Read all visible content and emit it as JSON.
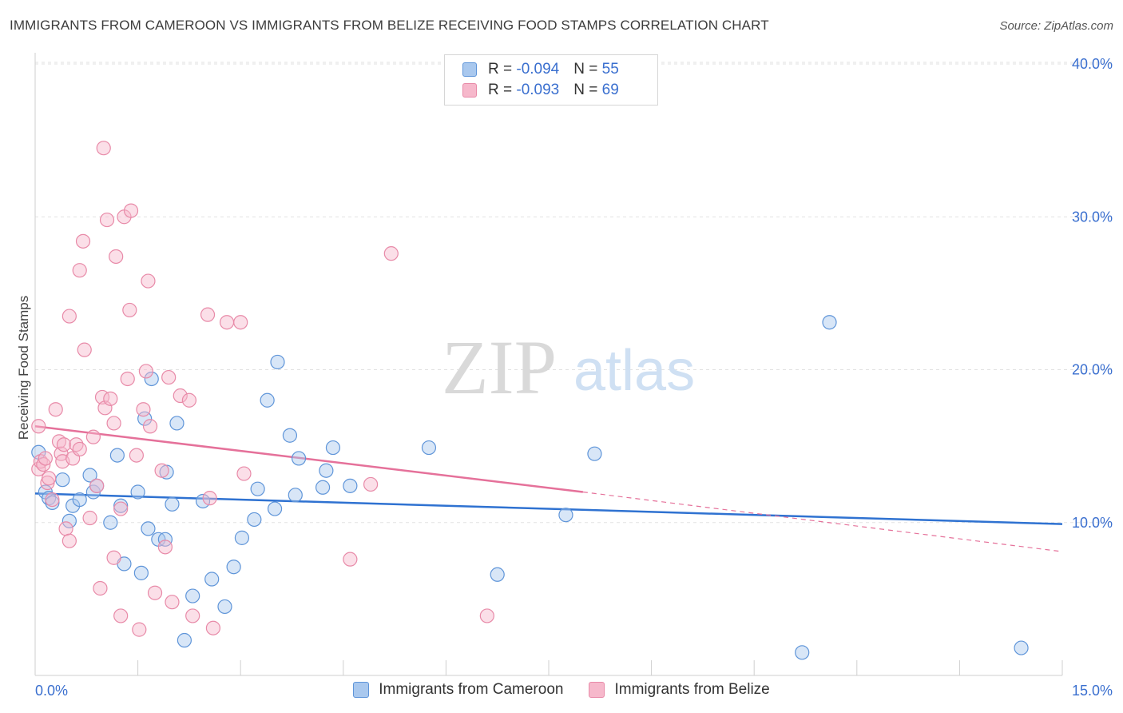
{
  "header": {
    "title": "IMMIGRANTS FROM CAMEROON VS IMMIGRANTS FROM BELIZE RECEIVING FOOD STAMPS CORRELATION CHART",
    "source": "Source: ZipAtlas.com"
  },
  "watermark": {
    "zip": "ZIP",
    "atlas": "atlas"
  },
  "legend": {
    "cameroon": {
      "r_label": "R = ",
      "r_value": "-0.094",
      "n_label": "N = ",
      "n_value": "55"
    },
    "belize": {
      "r_label": "R = ",
      "r_value": "-0.093",
      "n_label": "N = ",
      "n_value": "69"
    }
  },
  "colors": {
    "cameroon_fill": "#a9c8ee",
    "cameroon_stroke": "#5f95d9",
    "cameroon_line": "#2f72d1",
    "belize_fill": "#f6b8cb",
    "belize_stroke": "#e88aa8",
    "belize_line": "#e5719a",
    "tick_text": "#3a6fcf",
    "grid": "#e2e2e2"
  },
  "chart_data": {
    "type": "scatter",
    "title": "IMMIGRANTS FROM CAMEROON VS IMMIGRANTS FROM BELIZE RECEIVING FOOD STAMPS CORRELATION CHART",
    "xlabel": "",
    "ylabel": "Receiving Food Stamps",
    "xlim": [
      0,
      15
    ],
    "ylim": [
      0,
      40
    ],
    "x_tick_labels": [
      "0.0%",
      "15.0%"
    ],
    "y_ticks": [
      10,
      20,
      30,
      40
    ],
    "y_tick_labels": [
      "10.0%",
      "20.0%",
      "30.0%",
      "40.0%"
    ],
    "grid": true,
    "legend_position": "bottom",
    "series": [
      {
        "name": "Immigrants from Cameroon",
        "trend": {
          "x": [
            0,
            15
          ],
          "y": [
            11.9,
            9.9
          ]
        },
        "points": [
          [
            0.05,
            14.6
          ],
          [
            0.15,
            12.0
          ],
          [
            0.2,
            11.6
          ],
          [
            0.25,
            11.3
          ],
          [
            0.4,
            12.8
          ],
          [
            0.5,
            10.1
          ],
          [
            0.55,
            11.1
          ],
          [
            0.65,
            11.5
          ],
          [
            0.8,
            13.1
          ],
          [
            0.85,
            12.0
          ],
          [
            0.9,
            12.4
          ],
          [
            1.1,
            10.0
          ],
          [
            1.2,
            14.4
          ],
          [
            1.25,
            11.1
          ],
          [
            1.3,
            7.3
          ],
          [
            1.5,
            12.0
          ],
          [
            1.55,
            6.7
          ],
          [
            1.6,
            16.8
          ],
          [
            1.65,
            9.6
          ],
          [
            1.7,
            19.4
          ],
          [
            1.8,
            8.9
          ],
          [
            1.9,
            8.9
          ],
          [
            1.92,
            13.3
          ],
          [
            2.0,
            11.2
          ],
          [
            2.07,
            16.5
          ],
          [
            2.18,
            2.3
          ],
          [
            2.3,
            5.2
          ],
          [
            2.45,
            11.4
          ],
          [
            2.58,
            6.3
          ],
          [
            2.77,
            4.5
          ],
          [
            2.9,
            7.1
          ],
          [
            3.02,
            9.0
          ],
          [
            3.2,
            10.2
          ],
          [
            3.25,
            12.2
          ],
          [
            3.39,
            18.0
          ],
          [
            3.5,
            10.9
          ],
          [
            3.54,
            20.5
          ],
          [
            3.72,
            15.7
          ],
          [
            3.8,
            11.8
          ],
          [
            3.85,
            14.2
          ],
          [
            4.2,
            12.3
          ],
          [
            4.25,
            13.4
          ],
          [
            4.35,
            14.9
          ],
          [
            4.6,
            12.4
          ],
          [
            5.75,
            14.9
          ],
          [
            6.75,
            6.6
          ],
          [
            7.75,
            10.5
          ],
          [
            8.17,
            14.5
          ],
          [
            11.2,
            1.5
          ],
          [
            11.6,
            23.1
          ],
          [
            14.4,
            1.8
          ]
        ]
      },
      {
        "name": "Immigrants from Belize",
        "trend": {
          "x": [
            0,
            8.0
          ],
          "y": [
            16.3,
            12.0
          ]
        },
        "trend_extension": {
          "x": [
            8.0,
            15
          ],
          "y": [
            12.0,
            8.1
          ]
        },
        "points": [
          [
            0.05,
            16.3
          ],
          [
            0.05,
            13.5
          ],
          [
            0.08,
            14.0
          ],
          [
            0.12,
            13.8
          ],
          [
            0.15,
            14.2
          ],
          [
            0.18,
            12.6
          ],
          [
            0.2,
            12.9
          ],
          [
            0.25,
            11.5
          ],
          [
            0.3,
            17.4
          ],
          [
            0.35,
            15.3
          ],
          [
            0.38,
            14.5
          ],
          [
            0.4,
            14.0
          ],
          [
            0.42,
            15.1
          ],
          [
            0.45,
            9.6
          ],
          [
            0.5,
            23.5
          ],
          [
            0.5,
            8.8
          ],
          [
            0.55,
            14.2
          ],
          [
            0.6,
            15.1
          ],
          [
            0.65,
            14.8
          ],
          [
            0.65,
            26.5
          ],
          [
            0.7,
            28.4
          ],
          [
            0.72,
            21.3
          ],
          [
            0.8,
            10.3
          ],
          [
            0.85,
            15.6
          ],
          [
            0.9,
            12.4
          ],
          [
            0.95,
            5.7
          ],
          [
            0.98,
            18.2
          ],
          [
            1.0,
            34.5
          ],
          [
            1.02,
            17.5
          ],
          [
            1.05,
            29.8
          ],
          [
            1.1,
            18.1
          ],
          [
            1.15,
            16.5
          ],
          [
            1.15,
            7.7
          ],
          [
            1.18,
            27.4
          ],
          [
            1.25,
            10.9
          ],
          [
            1.25,
            3.9
          ],
          [
            1.3,
            30.0
          ],
          [
            1.35,
            19.4
          ],
          [
            1.38,
            23.9
          ],
          [
            1.4,
            30.4
          ],
          [
            1.48,
            14.4
          ],
          [
            1.52,
            3.0
          ],
          [
            1.58,
            17.4
          ],
          [
            1.62,
            19.9
          ],
          [
            1.65,
            25.8
          ],
          [
            1.68,
            16.3
          ],
          [
            1.75,
            5.4
          ],
          [
            1.85,
            13.4
          ],
          [
            1.9,
            8.4
          ],
          [
            1.95,
            19.5
          ],
          [
            2.0,
            4.8
          ],
          [
            2.12,
            18.3
          ],
          [
            2.25,
            18.0
          ],
          [
            2.3,
            3.9
          ],
          [
            2.52,
            23.6
          ],
          [
            2.55,
            11.6
          ],
          [
            2.6,
            3.1
          ],
          [
            2.8,
            23.1
          ],
          [
            3.0,
            23.1
          ],
          [
            3.05,
            13.2
          ],
          [
            4.6,
            7.6
          ],
          [
            4.9,
            12.5
          ],
          [
            5.2,
            27.6
          ],
          [
            6.6,
            3.9
          ]
        ]
      }
    ]
  },
  "bottom_legend": {
    "items": [
      {
        "label": "Immigrants from Cameroon"
      },
      {
        "label": "Immigrants from Belize"
      }
    ]
  }
}
